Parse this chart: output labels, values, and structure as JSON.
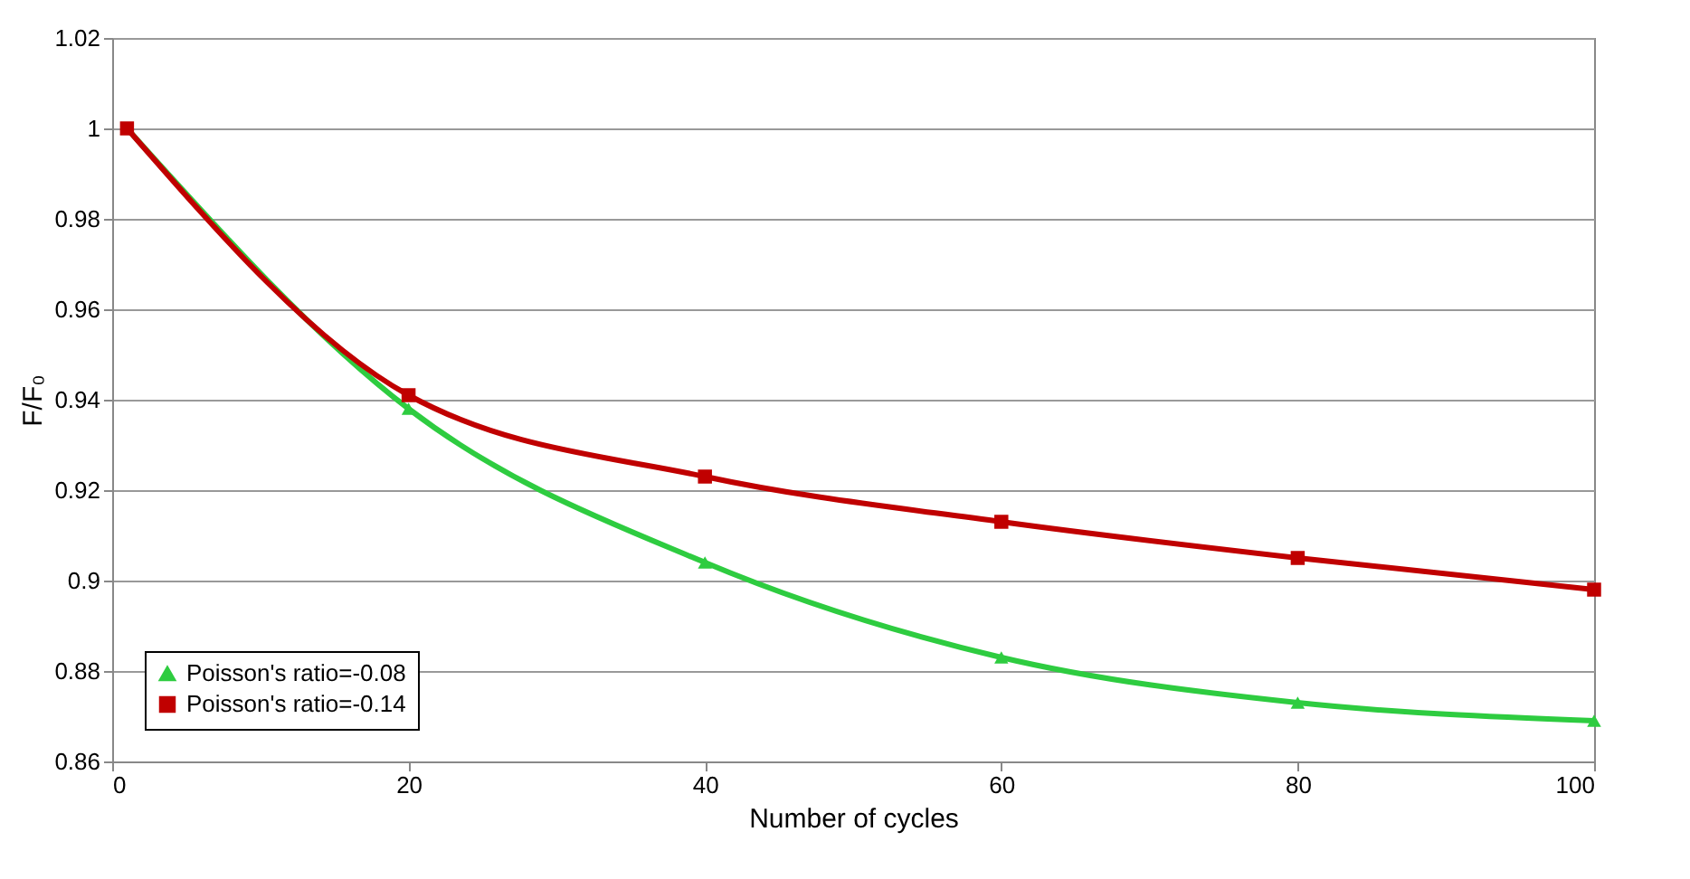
{
  "chart_data": {
    "type": "line",
    "xlabel": "Number of cycles",
    "ylabel": "F/F₀",
    "xlim": [
      0,
      100
    ],
    "xticks": [
      0,
      20,
      40,
      60,
      80,
      100
    ],
    "ylim": [
      0.86,
      1.02
    ],
    "yticks": [
      0.86,
      0.88,
      0.9,
      0.92,
      0.94,
      0.96,
      0.98,
      1,
      1.02
    ],
    "grid": "y",
    "legend": "bottom left",
    "line_style": "solid",
    "series": [
      {
        "name": "Poisson's ratio=-0.08",
        "color": "#2ecc40",
        "marker": "triangle",
        "x": [
          1,
          20,
          40,
          60,
          80,
          100
        ],
        "values": [
          1,
          0.938,
          0.904,
          0.883,
          0.873,
          0.869
        ]
      },
      {
        "name": "Poisson's ratio=-0.14",
        "color": "#c00000",
        "marker": "square",
        "x": [
          1,
          20,
          40,
          60,
          80,
          100
        ],
        "values": [
          1,
          0.941,
          0.923,
          0.913,
          0.905,
          0.898
        ]
      }
    ]
  }
}
